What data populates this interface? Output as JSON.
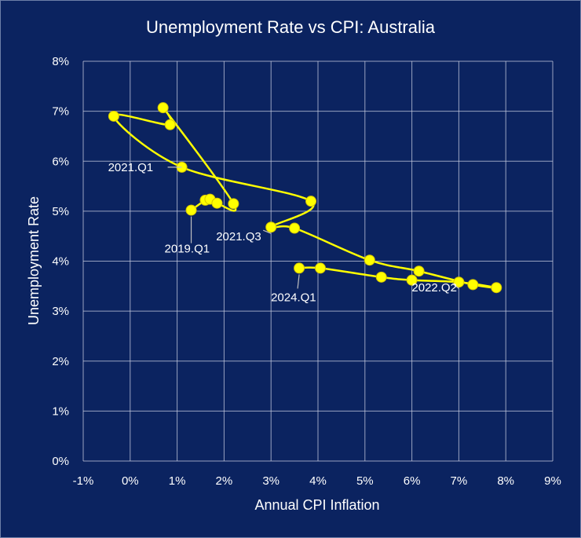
{
  "chart_data": {
    "type": "scatter",
    "title": "Unemployment Rate vs CPI: Australia",
    "xlabel": "Annual CPI Inflation",
    "ylabel": "Unemployment Rate",
    "xlim": [
      -1,
      9
    ],
    "ylim": [
      0,
      8
    ],
    "xtick_labels": [
      "-1%",
      "0%",
      "1%",
      "2%",
      "3%",
      "4%",
      "5%",
      "6%",
      "7%",
      "8%",
      "9%"
    ],
    "ytick_labels": [
      "0%",
      "1%",
      "2%",
      "3%",
      "4%",
      "5%",
      "6%",
      "7%",
      "8%"
    ],
    "grid": true,
    "legend": "none",
    "smooth_line": true,
    "colors": {
      "background": "#0b2360",
      "series": "#ffff00",
      "grid": "#c8cde0",
      "text": "#ffffff",
      "leader": "#bfbfbf"
    },
    "series": [
      {
        "x": [
          1.3,
          1.6,
          1.7,
          1.85,
          2.2,
          0.7,
          0.85,
          -0.35,
          1.1,
          3.85,
          3.0,
          3.5,
          5.1,
          6.15,
          7.3,
          7.8,
          7.0,
          6.0,
          5.35,
          4.05,
          3.6
        ],
        "y": [
          5.02,
          5.22,
          5.24,
          5.16,
          5.15,
          7.07,
          6.73,
          6.9,
          5.88,
          5.2,
          4.68,
          4.66,
          4.02,
          3.8,
          3.53,
          3.47,
          3.58,
          3.62,
          3.68,
          3.86,
          3.86
        ]
      }
    ],
    "annotations": [
      {
        "text": "2019.Q1",
        "x": 1.3,
        "y": 5.02
      },
      {
        "text": "2021.Q1",
        "x": 1.1,
        "y": 5.88
      },
      {
        "text": "2021.Q3",
        "x": 3.0,
        "y": 4.68
      },
      {
        "text": "2022.Q2",
        "x": 7.0,
        "y": 3.58
      },
      {
        "text": "2024.Q1",
        "x": 3.6,
        "y": 3.86
      }
    ]
  }
}
